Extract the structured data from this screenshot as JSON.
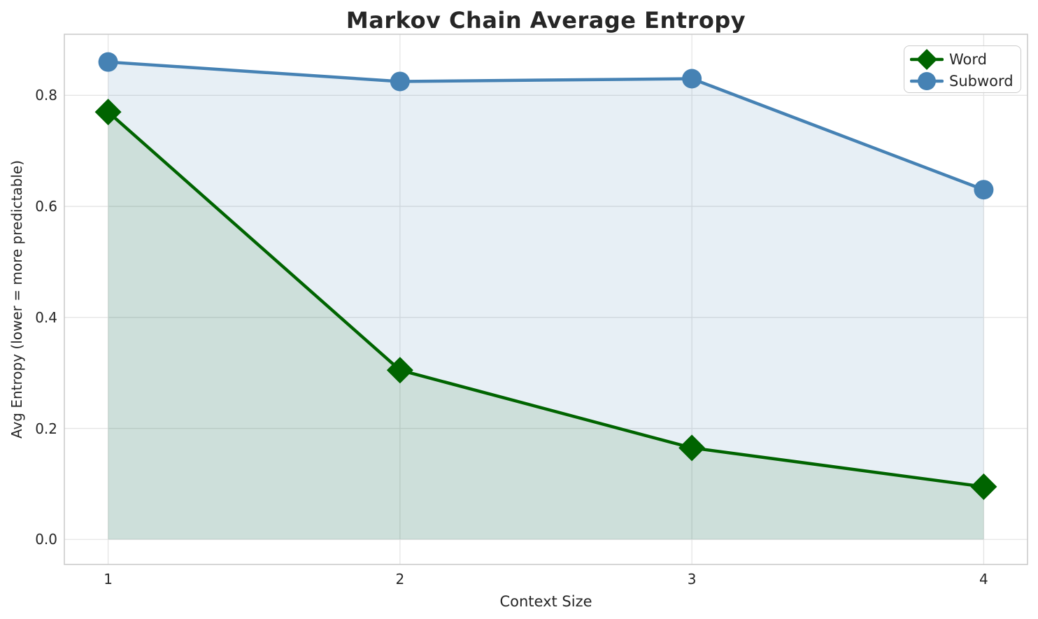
{
  "chart_data": {
    "type": "line",
    "title": "Markov Chain Average Entropy",
    "xlabel": "Context Size",
    "ylabel": "Avg Entropy (lower = more predictable)",
    "x": [
      1,
      2,
      3,
      4
    ],
    "series": [
      {
        "name": "Word",
        "values": [
          0.77,
          0.305,
          0.165,
          0.095
        ],
        "color": "#006400",
        "fill": "rgba(0,100,0,0.11)",
        "marker": "diamond"
      },
      {
        "name": "Subword",
        "values": [
          0.86,
          0.825,
          0.83,
          0.63
        ],
        "color": "#4682B4",
        "fill": "rgba(70,130,180,0.13)",
        "marker": "circle"
      }
    ],
    "xlim": [
      0.85,
      4.15
    ],
    "ylim": [
      -0.045,
      0.91
    ],
    "xticks": [
      1,
      2,
      3,
      4
    ],
    "xtick_labels": [
      "1",
      "2",
      "3",
      "4"
    ],
    "yticks": [
      0,
      0.2,
      0.4,
      0.6,
      0.8
    ],
    "ytick_labels": [
      "0.0",
      "0.2",
      "0.4",
      "0.6",
      "0.8"
    ],
    "grid": true,
    "legend_position": "upper right",
    "area_fill_to_zero": true
  },
  "style": {
    "grid_color": "#e4e4e4",
    "spine_color": "#cccccc",
    "text_color": "#262626",
    "background": "#ffffff"
  }
}
